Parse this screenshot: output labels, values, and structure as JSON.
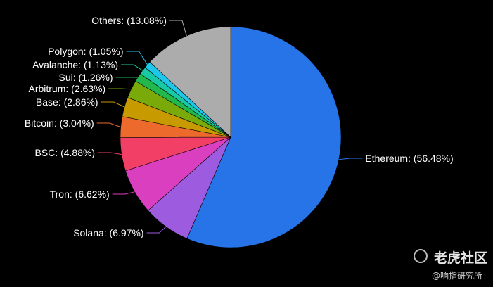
{
  "chart_data": {
    "type": "pie",
    "title": "",
    "slices": [
      {
        "name": "Ethereum",
        "value": 56.48,
        "label": "Ethereum: (56.48%)",
        "color": "#2674e8"
      },
      {
        "name": "Solana",
        "value": 6.97,
        "label": "Solana: (6.97%)",
        "color": "#9d5ce0"
      },
      {
        "name": "Tron",
        "value": 6.62,
        "label": "Tron: (6.62%)",
        "color": "#da3fc0"
      },
      {
        "name": "BSC",
        "value": 4.88,
        "label": "BSC: (4.88%)",
        "color": "#f23f66"
      },
      {
        "name": "Bitcoin",
        "value": 3.04,
        "label": "Bitcoin: (3.04%)",
        "color": "#ec6a2c"
      },
      {
        "name": "Base",
        "value": 2.86,
        "label": "Base: (2.86%)",
        "color": "#c79a00"
      },
      {
        "name": "Arbitrum",
        "value": 2.63,
        "label": "Arbitrum: (2.63%)",
        "color": "#7aaa0a"
      },
      {
        "name": "Sui",
        "value": 1.26,
        "label": "Sui: (1.26%)",
        "color": "#22b84b"
      },
      {
        "name": "Avalanche",
        "value": 1.13,
        "label": "Avalanche: (1.13%)",
        "color": "#18c9a5"
      },
      {
        "name": "Polygon",
        "value": 1.05,
        "label": "Polygon: (1.05%)",
        "color": "#1ec6ea"
      },
      {
        "name": "Others",
        "value": 13.08,
        "label": "Others: (13.08%)",
        "color": "#acacac"
      }
    ]
  },
  "watermark": {
    "title": "老虎社区",
    "subtitle": "@响指研究所"
  }
}
